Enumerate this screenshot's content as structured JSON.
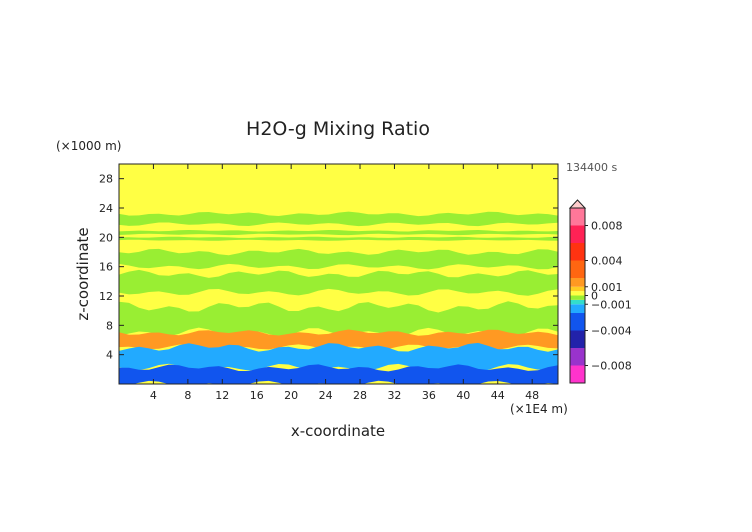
{
  "chart_data": {
    "type": "heatmap",
    "title": "H2O-g Mixing Ratio",
    "xlabel": "x-coordinate",
    "ylabel": "z-coordinate",
    "x_unit": "(×1E4 m)",
    "y_unit": "(×1000 m)",
    "time_label": "134400 s",
    "xlim": [
      0,
      51
    ],
    "ylim": [
      0,
      30
    ],
    "x_ticks": [
      4,
      8,
      12,
      16,
      20,
      24,
      28,
      32,
      36,
      40,
      44,
      48
    ],
    "x_tick_labels": [
      "4",
      "8",
      "12",
      "16",
      "20",
      "24",
      "28",
      "32",
      "36",
      "40",
      "44",
      "48"
    ],
    "y_ticks": [
      4,
      8,
      12,
      16,
      20,
      24,
      28
    ],
    "y_tick_labels": [
      "4",
      "8",
      "12",
      "16",
      "20",
      "24",
      "28"
    ],
    "colorbar": {
      "range": [
        -0.01,
        0.01
      ],
      "tick_values": [
        0.008,
        0.004,
        0.001,
        0,
        -0.001,
        -0.004,
        -0.008
      ],
      "tick_labels": [
        "0.008",
        "0.004",
        "0.001",
        "0",
        "−0.001",
        "−0.004",
        "−0.008"
      ],
      "bands": [
        {
          "from": -0.01,
          "to": -0.008,
          "color": "#ff33cc"
        },
        {
          "from": -0.008,
          "to": -0.006,
          "color": "#9933cc"
        },
        {
          "from": -0.006,
          "to": -0.004,
          "color": "#2222aa"
        },
        {
          "from": -0.004,
          "to": -0.002,
          "color": "#1155ee"
        },
        {
          "from": -0.002,
          "to": -0.001,
          "color": "#22aaff"
        },
        {
          "from": -0.001,
          "to": -0.0005,
          "color": "#33ddcc"
        },
        {
          "from": -0.0005,
          "to": 0,
          "color": "#99ee33"
        },
        {
          "from": 0,
          "to": 0.0005,
          "color": "#ffff44"
        },
        {
          "from": 0.0005,
          "to": 0.001,
          "color": "#ffcc22"
        },
        {
          "from": 0.001,
          "to": 0.002,
          "color": "#ff9922"
        },
        {
          "from": 0.002,
          "to": 0.004,
          "color": "#ff6611"
        },
        {
          "from": 0.004,
          "to": 0.006,
          "color": "#ff3311"
        },
        {
          "from": 0.006,
          "to": 0.008,
          "color": "#ff2255"
        },
        {
          "from": 0.008,
          "to": 0.01,
          "color": "#ff7799"
        }
      ],
      "overflow_color": "#ffcccc"
    },
    "field": {
      "note_free": true,
      "background_value": 0.0003,
      "regions": [
        {
          "kind": "band",
          "z_from": 21.8,
          "z_to": 23.2,
          "value": -0.0002
        },
        {
          "kind": "band",
          "z_from": 20.4,
          "z_to": 20.9,
          "value": -0.0002
        },
        {
          "kind": "band",
          "z_from": 19.6,
          "z_to": 20.0,
          "value": -0.0002
        },
        {
          "kind": "band",
          "z_from": 16.0,
          "z_to": 18.0,
          "value": -0.0002
        },
        {
          "kind": "band",
          "z_from": 12.5,
          "z_to": 15.0,
          "value": -0.0002
        },
        {
          "kind": "band",
          "z_from": 7.0,
          "z_to": 10.5,
          "value": -0.0002
        },
        {
          "kind": "band",
          "z_from": 5.0,
          "z_to": 7.0,
          "value": 0.0015
        },
        {
          "kind": "band",
          "z_from": 2.2,
          "z_to": 5.0,
          "value": -0.0015
        },
        {
          "kind": "band",
          "z_from": 0.0,
          "z_to": 2.2,
          "value": -0.0025
        }
      ]
    }
  }
}
